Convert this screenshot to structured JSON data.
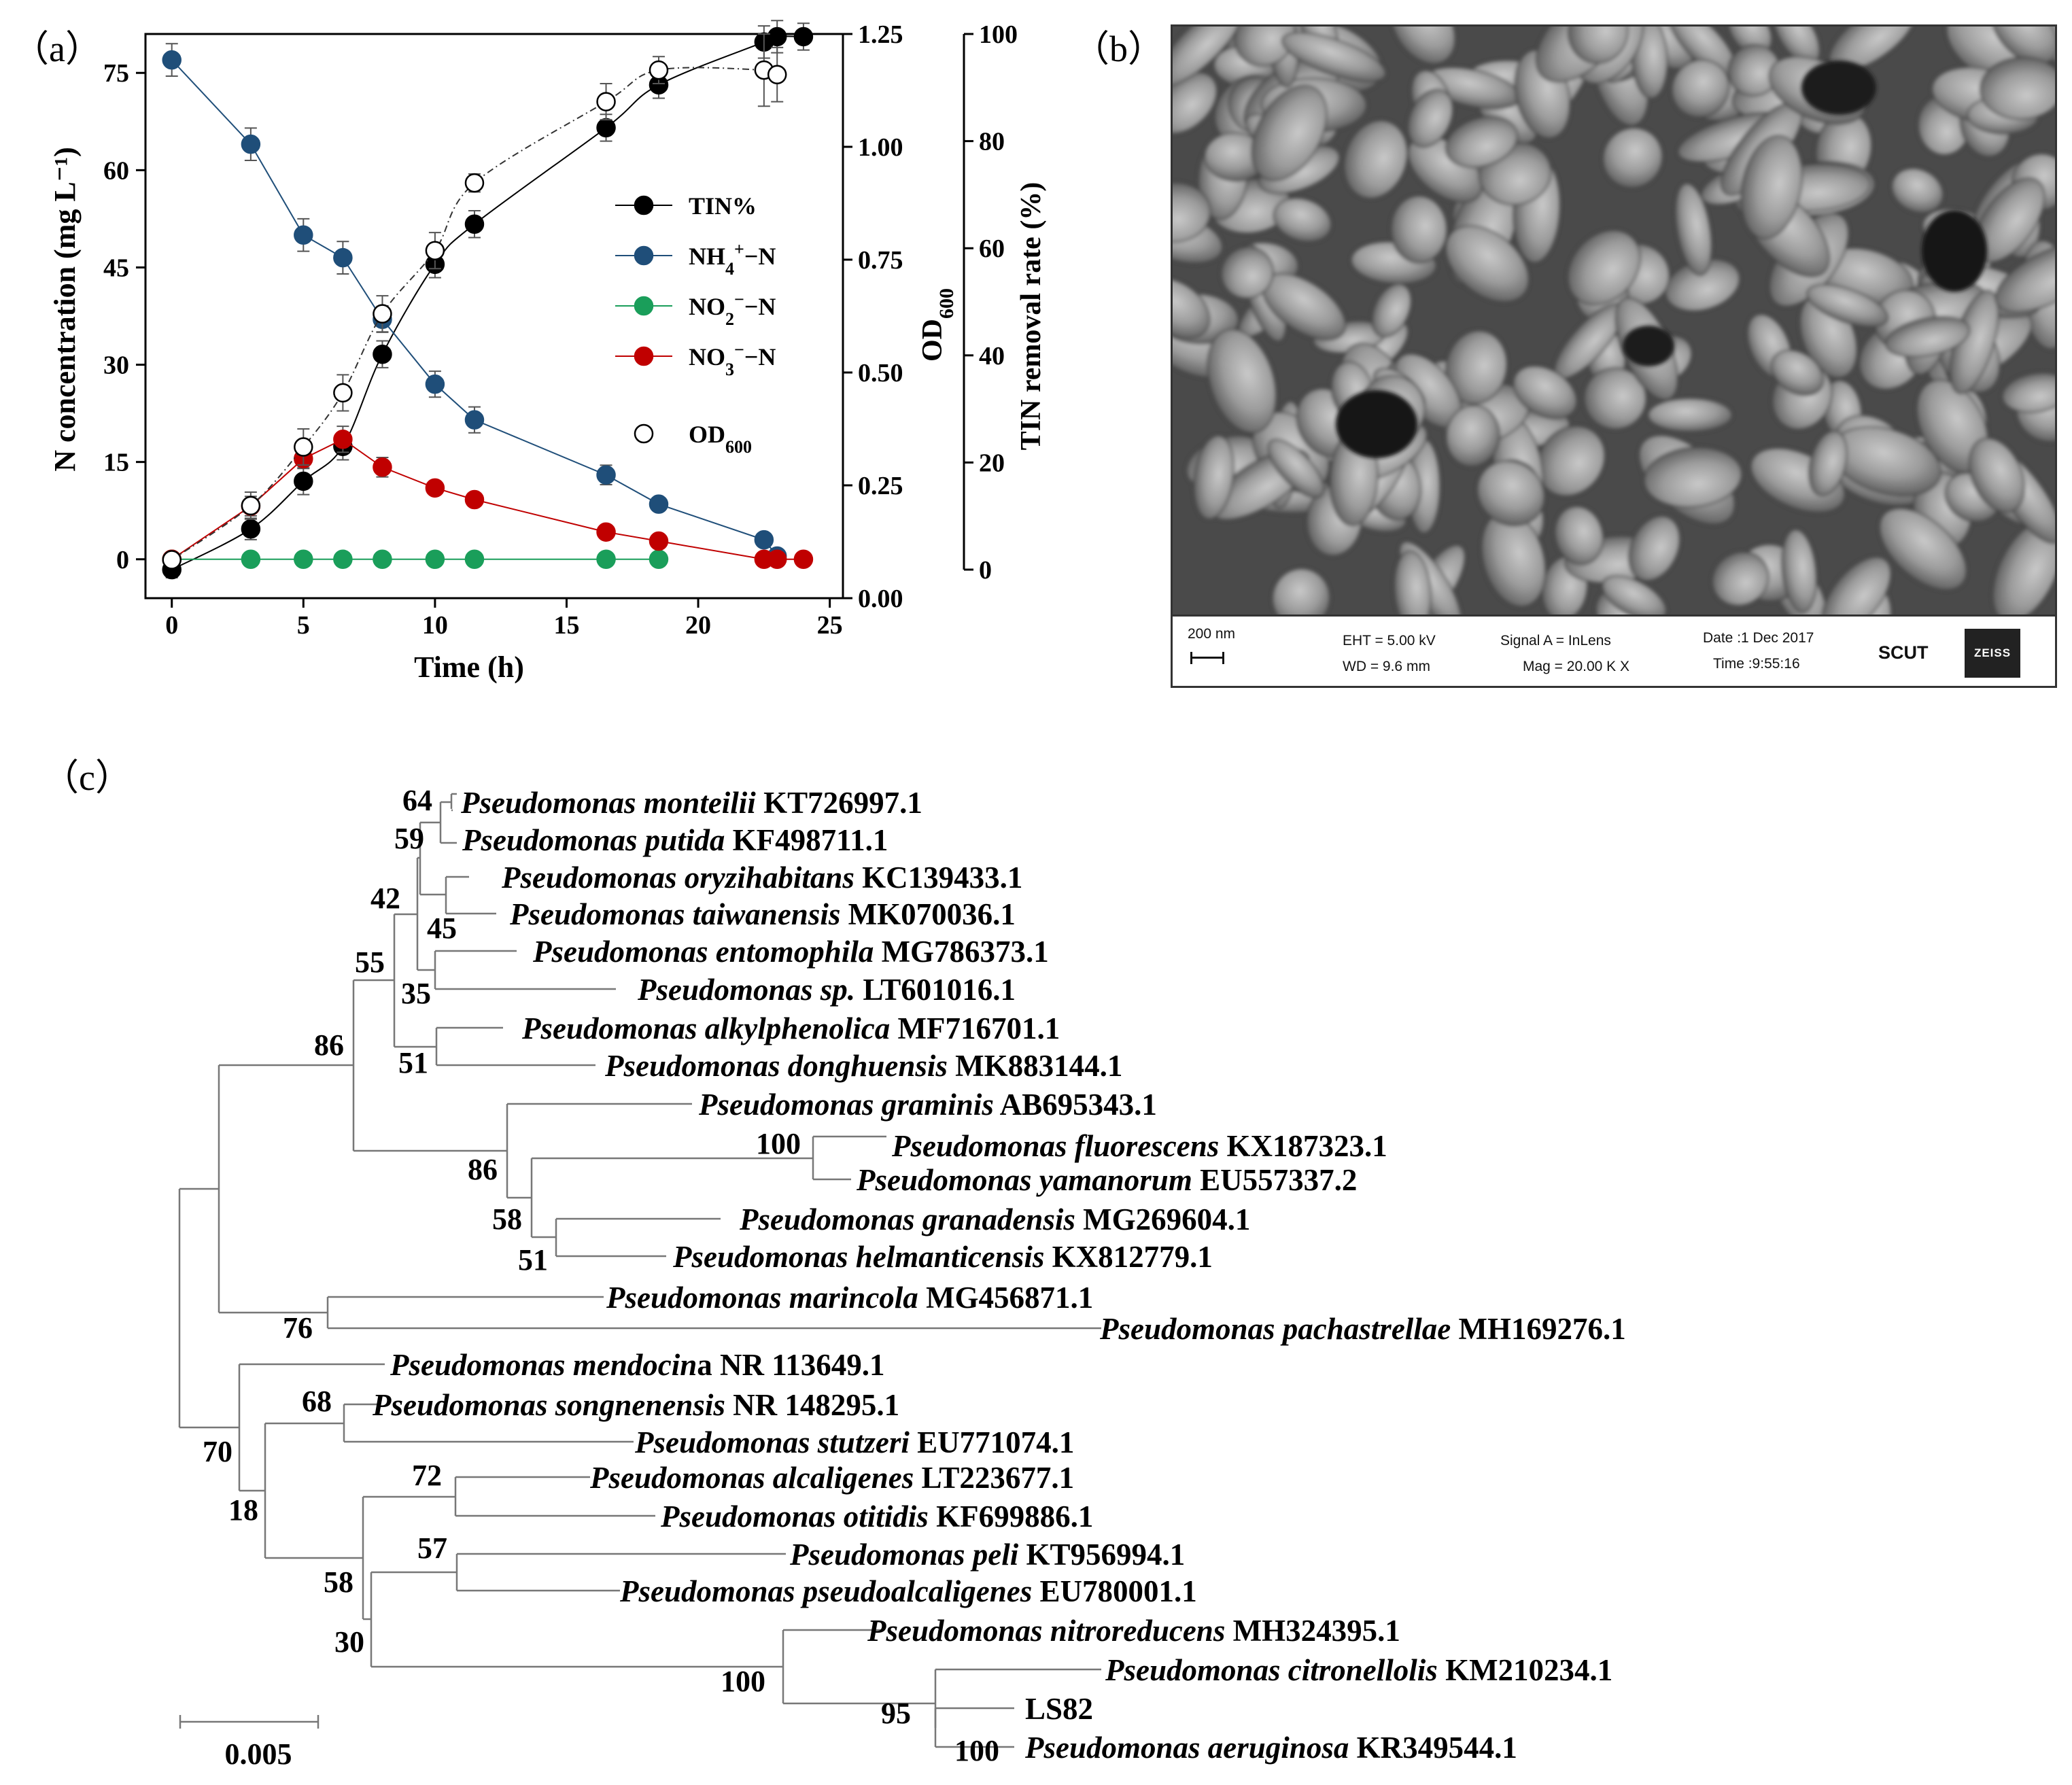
{
  "panels": {
    "a": "（a）",
    "b": "（b）",
    "c": "（c）"
  },
  "chart_data": {
    "type": "line",
    "xlabel": "Time (h)",
    "ylabel": "N concentration (mg L⁻¹)",
    "y2label": "OD600",
    "y3label": "TIN removal rate (%)",
    "xlim": [
      -1,
      25.5
    ],
    "ylim": [
      -6,
      81
    ],
    "y2lim": [
      0,
      1.25
    ],
    "y3lim": [
      0,
      100
    ],
    "xticks": [
      "0",
      "5",
      "10",
      "15",
      "20",
      "25"
    ],
    "yticks": [
      "0",
      "15",
      "30",
      "45",
      "60",
      "75"
    ],
    "y2ticks": [
      "0.00",
      "0.25",
      "0.50",
      "0.75",
      "1.00",
      "1.25"
    ],
    "y3ticks": [
      "0",
      "20",
      "40",
      "60",
      "80",
      "100"
    ],
    "legend_position": "center-right",
    "series": [
      {
        "key": "tin",
        "name": "TIN%",
        "axis": "y3",
        "marker": "filled",
        "color": "#000000",
        "x": [
          0,
          3,
          5,
          6.5,
          8,
          10,
          11.5,
          16.5,
          18.5,
          22.5,
          23,
          24
        ],
        "y": [
          0,
          7.6,
          16.5,
          23.0,
          40.2,
          57.0,
          64.5,
          82.5,
          90.5,
          98.5,
          99.5,
          99.5
        ],
        "err": [
          1.5,
          2.0,
          2.5,
          2.5,
          2.5,
          2.5,
          2.5,
          2.5,
          2.5,
          3.0,
          3.0,
          2.5
        ]
      },
      {
        "key": "nh4",
        "name": "NH4+-N",
        "axis": "y",
        "marker": "filled",
        "color": "#1f4e79",
        "x": [
          0,
          3,
          5,
          6.5,
          8,
          10,
          11.5,
          16.5,
          18.5,
          22.5,
          23
        ],
        "y": [
          77,
          64,
          50,
          46.5,
          37,
          27,
          21.5,
          13,
          8.5,
          3,
          0.5
        ],
        "err": [
          2.5,
          2.5,
          2.5,
          2.5,
          2.0,
          2.0,
          2.0,
          1.5,
          1.0,
          0.5,
          0.5
        ]
      },
      {
        "key": "no2",
        "name": "NO2−-N",
        "axis": "y",
        "marker": "filled",
        "color": "#1a9e5a",
        "x": [
          0,
          3,
          5,
          6.5,
          8,
          10,
          11.5,
          16.5,
          18.5
        ],
        "y": [
          0,
          0,
          0,
          0,
          0,
          0,
          0,
          0,
          0
        ],
        "err": [
          0,
          0,
          0,
          0,
          0,
          0,
          0,
          0,
          0
        ]
      },
      {
        "key": "no3",
        "name": "NO3−-N",
        "axis": "y",
        "marker": "filled",
        "color": "#c00000",
        "x": [
          0,
          3,
          5,
          6.5,
          8,
          10,
          11.5,
          16.5,
          18.5,
          22.5,
          23,
          24
        ],
        "y": [
          0,
          8.2,
          15.5,
          18.5,
          14.2,
          11.0,
          9.2,
          4.2,
          2.8,
          0,
          0,
          0
        ],
        "err": [
          0.5,
          1.5,
          1.5,
          2.0,
          1.5,
          1.0,
          0.5,
          0.5,
          0.5,
          0,
          0,
          0
        ]
      },
      {
        "key": "od",
        "name": "OD600",
        "axis": "y2",
        "marker": "open",
        "color": "#000000",
        "x": [
          0,
          3,
          5,
          6.5,
          8,
          10,
          11.5,
          16.5,
          18.5,
          22.5,
          23
        ],
        "y": [
          0.085,
          0.205,
          0.335,
          0.455,
          0.63,
          0.77,
          0.92,
          1.1,
          1.17,
          1.17,
          1.16
        ],
        "err": [
          0.015,
          0.03,
          0.04,
          0.04,
          0.04,
          0.04,
          0.02,
          0.04,
          0.03,
          0.08,
          0.06
        ]
      }
    ],
    "legend": [
      {
        "key": "tin",
        "label": "TIN%"
      },
      {
        "key": "nh4",
        "label": "NH4+−N"
      },
      {
        "key": "no2",
        "label": "NO2−−N"
      },
      {
        "key": "no3",
        "label": "NO3−−N"
      },
      {
        "key": "od",
        "label": "OD600"
      }
    ]
  },
  "sem": {
    "scale": "200 nm",
    "eht": "EHT =  5.00 kV",
    "wd": "WD =  9.6 mm",
    "signal": "Signal A = InLens",
    "mag": "Mag =   20.00 K X",
    "date": "Date :1 Dec 2017",
    "time": "Time :9:55:16",
    "institution": "SCUT",
    "logo": "ZEISS"
  },
  "tree": {
    "scale_label": "0.005",
    "leaves": [
      {
        "genus": "Pseudomonas monteilii",
        "acc": "KT726997.1"
      },
      {
        "genus": "Pseudomonas putida",
        "acc": "KF498711.1"
      },
      {
        "genus": "Pseudomonas oryzihabitans",
        "acc": "KC139433.1"
      },
      {
        "genus": "Pseudomonas taiwanensis",
        "acc": "MK070036.1"
      },
      {
        "genus": "Pseudomonas entomophila",
        "acc": "MG786373.1"
      },
      {
        "genus": "Pseudomonas sp.",
        "acc": "LT601016.1"
      },
      {
        "genus": "Pseudomonas alkylphenolica",
        "acc": "MF716701.1"
      },
      {
        "genus": "Pseudomonas donghuensis",
        "acc": "MK883144.1"
      },
      {
        "genus": "Pseudomonas graminis",
        "acc": "AB695343.1"
      },
      {
        "genus": "Pseudomonas fluorescens",
        "acc": "KX187323.1"
      },
      {
        "genus": "Pseudomonas yamanorum",
        "acc": "EU557337.2"
      },
      {
        "genus": "Pseudomonas granadensis",
        "acc": "MG269604.1"
      },
      {
        "genus": "Pseudomonas helmanticensis",
        "acc": "KX812779.1"
      },
      {
        "genus": "Pseudomonas marincola",
        "acc": "MG456871.1"
      },
      {
        "genus": "Pseudomonas pachastrellae",
        "acc": "MH169276.1"
      },
      {
        "genus": "Pseudomonas mendocin",
        "acc": "a NR 113649.1"
      },
      {
        "genus": "Pseudomonas songnenensis",
        "acc": "NR 148295.1"
      },
      {
        "genus": "Pseudomonas stutzeri",
        "acc": "EU771074.1"
      },
      {
        "genus": "Pseudomonas alcaligenes",
        "acc": "LT223677.1"
      },
      {
        "genus": "Pseudomonas otitidis",
        "acc": "KF699886.1"
      },
      {
        "genus": "Pseudomonas peli",
        "acc": "KT956994.1"
      },
      {
        "genus": "Pseudomonas pseudoalcaligenes",
        "acc": "EU780001.1"
      },
      {
        "genus": "Pseudomonas nitroreducens",
        "acc": "MH324395.1"
      },
      {
        "genus": "Pseudomonas citronellolis",
        "acc": "KM210234.1"
      },
      {
        "genus": "",
        "acc": "LS82"
      },
      {
        "genus": "Pseudomonas aeruginosa",
        "acc": "KR349544.1"
      }
    ],
    "bootstraps": [
      "64",
      "59",
      "42",
      "45",
      "55",
      "35",
      "86",
      "51",
      "86",
      "100",
      "58",
      "51",
      "76",
      "68",
      "70",
      "72",
      "18",
      "57",
      "58",
      "30",
      "100",
      "95",
      "100"
    ]
  }
}
